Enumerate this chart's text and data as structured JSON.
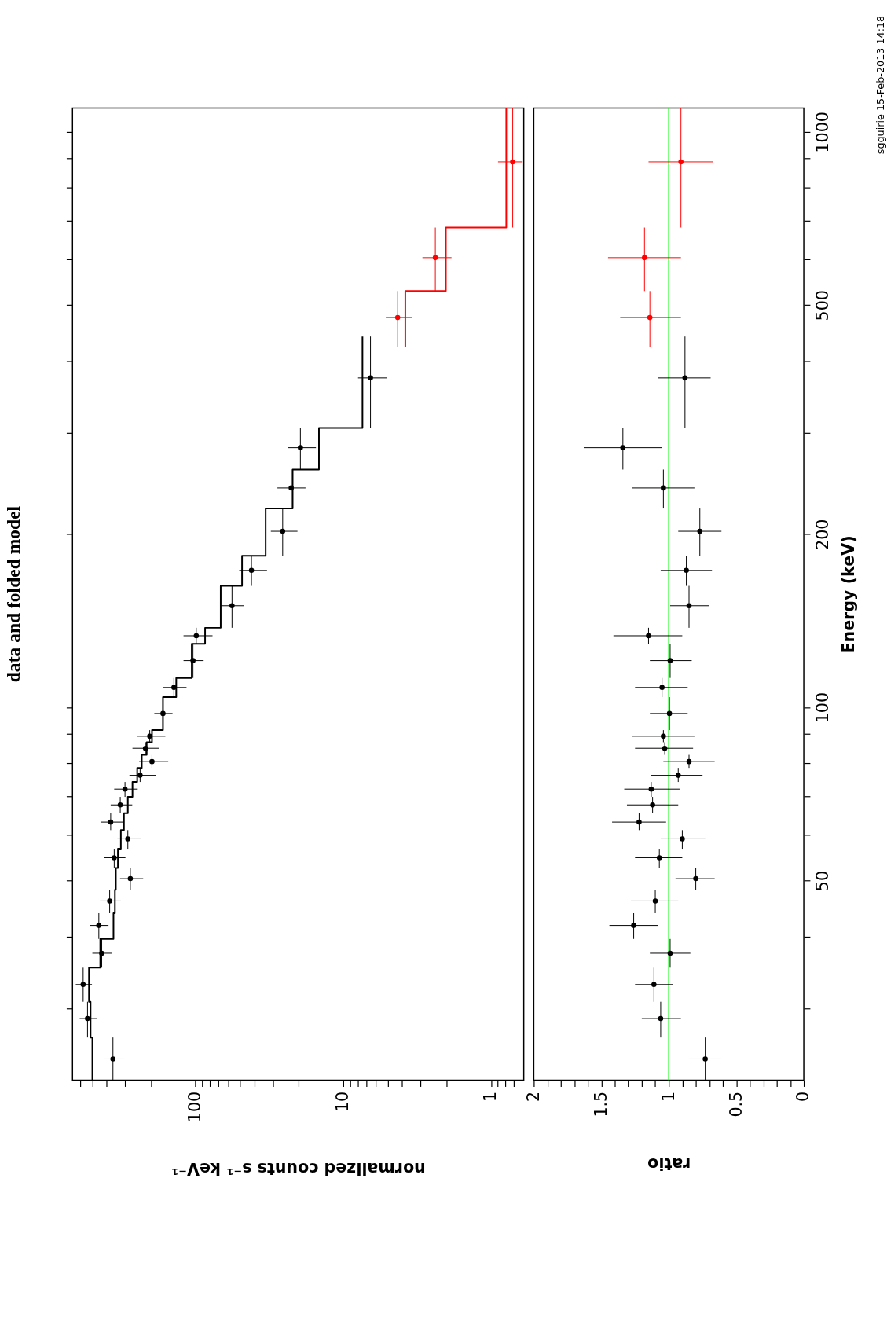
{
  "chart_data": [
    {
      "type": "scatter",
      "title": "data and folded model",
      "xlabel": "normalized counts s⁻¹ keV⁻¹",
      "orientation": "horizontal",
      "log": "xy",
      "xlim": [
        680,
        0.6
      ],
      "xticks": [
        {
          "value": 600,
          "label": null
        },
        {
          "value": 500,
          "label": null
        },
        {
          "value": 400,
          "label": null
        },
        {
          "value": 300,
          "label": null
        },
        {
          "value": 200,
          "label": null
        },
        100,
        {
          "value": 90,
          "label": null
        },
        {
          "value": 80,
          "label": null
        },
        {
          "value": 70,
          "label": null
        },
        {
          "value": 60,
          "label": null
        },
        {
          "value": 50,
          "label": null
        },
        {
          "value": 40,
          "label": null
        },
        {
          "value": 30,
          "label": null
        },
        {
          "value": 20,
          "label": null
        },
        10,
        {
          "value": 9,
          "label": null
        },
        {
          "value": 8,
          "label": null
        },
        {
          "value": 7,
          "label": null
        },
        {
          "value": 6,
          "label": null
        },
        {
          "value": 5,
          "label": null
        },
        {
          "value": 4,
          "label": null
        },
        {
          "value": 3,
          "label": null
        },
        {
          "value": 2,
          "label": null
        },
        1,
        {
          "value": 0.9,
          "label": null
        },
        {
          "value": 0.8,
          "label": null
        },
        {
          "value": 0.7,
          "label": null
        }
      ],
      "ylim": [
        22.5,
        1100
      ],
      "yticks": [
        {
          "value": 30,
          "label": null
        },
        {
          "value": 40,
          "label": null
        },
        50,
        {
          "value": 60,
          "label": null
        },
        {
          "value": 70,
          "label": null
        },
        {
          "value": 80,
          "label": null
        },
        {
          "value": 90,
          "label": null
        },
        100,
        200,
        {
          "value": 300,
          "label": null
        },
        {
          "value": 400,
          "label": null
        },
        500,
        {
          "value": 600,
          "label": null
        },
        {
          "value": 700,
          "label": null
        },
        {
          "value": 800,
          "label": null
        },
        {
          "value": 900,
          "label": null
        },
        1000
      ],
      "tick_labels": "x",
      "grid": false,
      "series": [
        {
          "color": "#000000",
          "x": [
            24.5,
            28.8,
            33.0,
            37.4,
            41.8,
            46.1,
            50.4,
            54.8,
            59.1,
            63.2,
            67.7,
            72.1,
            76.2,
            80.5,
            84.9,
            89.1,
            97.6,
            108.3,
            120.6,
            133.2,
            150.2,
            173.0,
            202.3,
            240.6,
            282.7,
            373.7
          ],
          "values": [
            362,
            538,
            576,
            431,
            451,
            381,
            276,
            355,
            287,
            375,
            323,
            300,
            237,
            197,
            218,
            204,
            166,
            140,
            104,
            98.8,
            56.6,
            41.8,
            25.7,
            22.5,
            19.5,
            6.54
          ],
          "errors": [
            [
              302,
              421
            ],
            [
              466,
              608
            ],
            [
              502,
              646
            ],
            [
              370,
              499
            ],
            [
              388,
              518
            ],
            [
              320,
              443
            ],
            [
              226,
              324
            ],
            [
              298,
              415
            ],
            [
              235,
              338
            ],
            [
              309,
              435
            ],
            [
              268,
              375
            ],
            [
              246,
              355
            ],
            [
              185,
              280
            ],
            [
              153,
              241
            ],
            [
              176,
              267
            ],
            [
              160,
              249
            ],
            [
              143,
              190
            ],
            [
              115,
              166
            ],
            [
              88.1,
              120.5
            ],
            [
              76.7,
              120.5
            ],
            [
              46.9,
              67.5
            ],
            [
              32.8,
              50.6
            ],
            [
              20.4,
              30.9
            ],
            [
              18.0,
              27.9
            ],
            [
              15.3,
              23.7
            ],
            [
              5.08,
              7.94
            ]
          ],
          "xerrors": [
            [
              22.5,
              26.7
            ],
            [
              26.7,
              30.8
            ],
            [
              30.8,
              35.3
            ],
            [
              35.3,
              39.6
            ],
            [
              39.6,
              43.9
            ],
            [
              43.9,
              48.2
            ],
            [
              48.2,
              52.6
            ],
            [
              52.6,
              56.8
            ],
            [
              56.8,
              61.2
            ],
            [
              61.2,
              65.5
            ],
            [
              65.5,
              69.9
            ],
            [
              69.9,
              74.2
            ],
            [
              74.2,
              78.5
            ],
            [
              78.5,
              82.7
            ],
            [
              82.7,
              87.0
            ],
            [
              87.0,
              91.3
            ],
            [
              91.3,
              104.2
            ],
            [
              104.2,
              112.5
            ],
            [
              112.5,
              129.0
            ],
            [
              129.0,
              137.5
            ],
            [
              137.5,
              162.6
            ],
            [
              162.6,
              183.4
            ],
            [
              183.4,
              221.6
            ],
            [
              221.6,
              259
            ],
            [
              259,
              306
            ],
            [
              306,
              441
            ]
          ]
        },
        {
          "type": "step",
          "color": "#000000",
          "x": [
            22.5,
            26.7,
            30.8,
            35.3,
            39.6,
            43.9,
            48.2,
            52.6,
            56.8,
            61.2,
            65.5,
            69.9,
            74.2,
            78.5,
            82.7,
            87.0,
            91.3,
            104.2,
            112.5,
            129.0,
            137.5,
            162.6,
            183.4,
            221.6,
            259,
            306,
            441
          ],
          "values": [
            499,
            513,
            526,
            441,
            359,
            351,
            346,
            335,
            320,
            305,
            287,
            267,
            248,
            231,
            214,
            197,
            166,
            135,
            106,
            86.1,
            67.5,
            48.4,
            33.5,
            22.0,
            14.6,
            7.41,
            7.41
          ]
        },
        {
          "color": "#ff0000",
          "x": [
            475.7,
            604.6,
            887
          ],
          "values": [
            4.28,
            2.38,
            0.713
          ],
          "errors": [
            [
              3.44,
              5.15
            ],
            [
              1.85,
              2.91
            ],
            [
              0.611,
              0.896
            ]
          ],
          "xerrors": [
            [
              422.6,
              529
            ],
            [
              529,
              682
            ],
            [
              682,
              1100
            ]
          ]
        },
        {
          "type": "step",
          "color": "#ff0000",
          "x": [
            422.6,
            529,
            682,
            1100
          ],
          "values": [
            3.8,
            2.02,
            0.788,
            0.788
          ]
        }
      ]
    },
    {
      "type": "scatter",
      "xlabel": "ratio",
      "ylabel": "Energy (keV)",
      "orientation": "horizontal",
      "log": "y",
      "xlim": [
        2,
        0
      ],
      "xticks": [
        2,
        {
          "value": 1.9,
          "label": null
        },
        {
          "value": 1.8,
          "label": null
        },
        {
          "value": 1.7,
          "label": null
        },
        {
          "value": 1.6,
          "label": null
        },
        1.5,
        {
          "value": 1.4,
          "label": null
        },
        {
          "value": 1.3,
          "label": null
        },
        {
          "value": 1.2,
          "label": null
        },
        {
          "value": 1.1,
          "label": null
        },
        1,
        {
          "value": 0.9,
          "label": null
        },
        {
          "value": 0.8,
          "label": null
        },
        {
          "value": 0.7,
          "label": null
        },
        {
          "value": 0.6,
          "label": null
        },
        0.5,
        {
          "value": 0.4,
          "label": null
        },
        {
          "value": 0.3,
          "label": null
        },
        {
          "value": 0.2,
          "label": null
        },
        {
          "value": 0.1,
          "label": null
        },
        0
      ],
      "ylim": [
        22.5,
        1100
      ],
      "yticks": [
        {
          "value": 30,
          "label": null
        },
        {
          "value": 40,
          "label": null
        },
        50,
        {
          "value": 60,
          "label": null
        },
        {
          "value": 70,
          "label": null
        },
        {
          "value": 80,
          "label": null
        },
        {
          "value": 90,
          "label": null
        },
        100,
        200,
        {
          "value": 300,
          "label": null
        },
        {
          "value": 400,
          "label": null
        },
        500,
        {
          "value": 600,
          "label": null
        },
        {
          "value": 700,
          "label": null
        },
        {
          "value": 800,
          "label": null
        },
        {
          "value": 900,
          "label": null
        },
        1000
      ],
      "grid": false,
      "ref_lines": [
        {
          "axis": "x",
          "value": 1,
          "color": "#00ff00"
        }
      ],
      "annotations": [
        "sgguirie 15-Feb-2013 14:18"
      ],
      "series": [
        {
          "color": "#000000",
          "x": [
            24.5,
            28.8,
            33.0,
            37.4,
            41.8,
            46.1,
            50.4,
            54.8,
            59.1,
            63.2,
            67.7,
            72.1,
            76.2,
            80.5,
            84.9,
            89.1,
            97.6,
            108.3,
            120.6,
            133.2,
            150.2,
            173.0,
            202.3,
            240.6,
            282.7,
            373.7
          ],
          "values": [
            0.73,
            1.06,
            1.11,
            0.99,
            1.26,
            1.1,
            0.8,
            1.07,
            0.9,
            1.22,
            1.12,
            1.13,
            0.93,
            0.85,
            1.03,
            1.04,
            0.995,
            1.05,
            0.99,
            1.15,
            0.85,
            0.87,
            0.77,
            1.04,
            1.34,
            0.88
          ],
          "errors": [
            [
              0.61,
              0.85
            ],
            [
              0.91,
              1.2
            ],
            [
              0.97,
              1.25
            ],
            [
              0.84,
              1.14
            ],
            [
              1.08,
              1.44
            ],
            [
              0.93,
              1.28
            ],
            [
              0.66,
              0.95
            ],
            [
              0.9,
              1.25
            ],
            [
              0.73,
              1.06
            ],
            [
              1.02,
              1.42
            ],
            [
              0.93,
              1.31
            ],
            [
              0.92,
              1.33
            ],
            [
              0.75,
              1.13
            ],
            [
              0.66,
              1.04
            ],
            [
              0.82,
              1.25
            ],
            [
              0.81,
              1.27
            ],
            [
              0.86,
              1.14
            ],
            [
              0.86,
              1.25
            ],
            [
              0.83,
              1.14
            ],
            [
              0.9,
              1.41
            ],
            [
              0.7,
              0.99
            ],
            [
              0.68,
              1.06
            ],
            [
              0.61,
              0.93
            ],
            [
              0.81,
              1.27
            ],
            [
              1.05,
              1.63
            ],
            [
              0.69,
              1.08
            ]
          ],
          "xerrors": [
            [
              22.5,
              26.7
            ],
            [
              26.7,
              30.8
            ],
            [
              30.8,
              35.3
            ],
            [
              35.3,
              39.6
            ],
            [
              39.6,
              43.9
            ],
            [
              43.9,
              48.2
            ],
            [
              48.2,
              52.6
            ],
            [
              52.6,
              56.8
            ],
            [
              56.8,
              61.2
            ],
            [
              61.2,
              65.5
            ],
            [
              65.5,
              69.9
            ],
            [
              69.9,
              74.2
            ],
            [
              74.2,
              78.5
            ],
            [
              78.5,
              82.7
            ],
            [
              82.7,
              87.0
            ],
            [
              87.0,
              91.3
            ],
            [
              91.3,
              104.2
            ],
            [
              104.2,
              112.5
            ],
            [
              112.5,
              129.0
            ],
            [
              129.0,
              137.5
            ],
            [
              137.5,
              162.6
            ],
            [
              162.6,
              183.4
            ],
            [
              183.4,
              221.6
            ],
            [
              221.6,
              259
            ],
            [
              259,
              306
            ],
            [
              306,
              441
            ]
          ]
        },
        {
          "color": "#ff0000",
          "x": [
            475.7,
            604.6,
            887
          ],
          "values": [
            1.14,
            1.18,
            0.91
          ],
          "errors": [
            [
              0.91,
              1.36
            ],
            [
              0.91,
              1.45
            ],
            [
              0.67,
              1.15
            ]
          ],
          "xerrors": [
            [
              422.6,
              529
            ],
            [
              529,
              682
            ],
            [
              682,
              1100
            ]
          ]
        }
      ]
    }
  ]
}
